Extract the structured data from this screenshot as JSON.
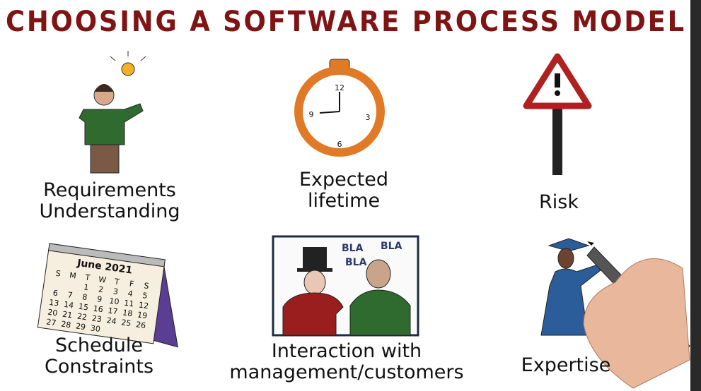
{
  "header": {
    "title": "CHOOSING A SOFTWARE PROCESS MODEL"
  },
  "factors": [
    {
      "label_lines": [
        "Requirements",
        "Understanding"
      ]
    },
    {
      "label_lines": [
        "Expected",
        "lifetime"
      ]
    },
    {
      "label_lines": [
        "Risk"
      ]
    },
    {
      "label_lines": [
        "Schedule",
        "Constraints"
      ]
    },
    {
      "label_lines": [
        "Interaction with",
        "management/customers"
      ]
    },
    {
      "label_lines": [
        "Expertise"
      ]
    }
  ],
  "clock": {
    "numbers": [
      "12",
      "3",
      "6",
      "9"
    ]
  },
  "calendar": {
    "month": "June 2021",
    "weekdays": [
      "S",
      "M",
      "T",
      "W",
      "T",
      "F",
      "S"
    ],
    "first_weekday": 2,
    "days": [
      "1",
      "2",
      "3",
      "4",
      "5",
      "6",
      "7",
      "8",
      "9",
      "10",
      "11",
      "12",
      "13",
      "14",
      "15",
      "16",
      "17",
      "18",
      "19",
      "20",
      "21",
      "22",
      "23",
      "24",
      "25",
      "26",
      "27",
      "28",
      "29",
      "30"
    ]
  },
  "speech": {
    "bubbles": [
      "BLA",
      "BLA",
      "BLA"
    ]
  }
}
